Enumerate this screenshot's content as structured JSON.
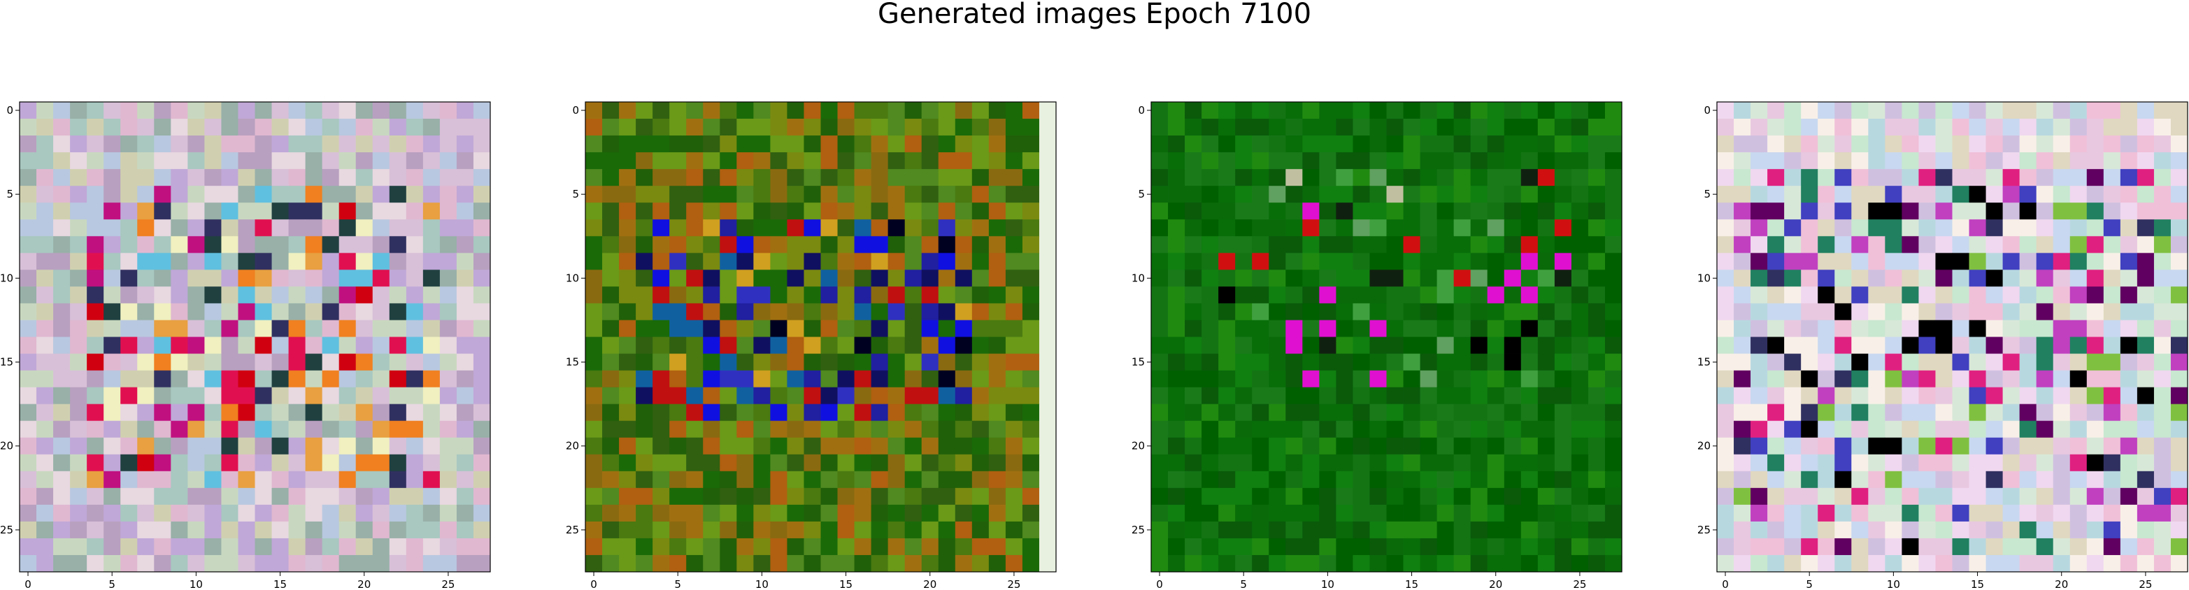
{
  "title": "Generated images Epoch 7100",
  "chart_data": [
    {
      "type": "heatmap",
      "panel": 1,
      "grid_size": 28,
      "xlim": [
        -0.5,
        27.5
      ],
      "ylim": [
        27.5,
        -0.5
      ],
      "xticks": [
        0,
        5,
        10,
        15,
        20,
        25
      ],
      "yticks": [
        0,
        5,
        10,
        15,
        20,
        25
      ],
      "palette": [
        "#d8c0d8",
        "#c8d8c0",
        "#b8c8e0",
        "#e0b8d0",
        "#a8c8c0",
        "#d0d0b0",
        "#c0a8d8",
        "#e8d8e0",
        "#98b0a8",
        "#b8a0c0"
      ],
      "accents": [
        "#e01050",
        "#d00010",
        "#f08020",
        "#e8a040",
        "#c01080",
        "#303060",
        "#204040",
        "#f0f0c0",
        "#60c0e0"
      ],
      "accent_region": {
        "rows": [
          5,
          22
        ],
        "cols": [
          4,
          24
        ]
      },
      "accent_probability": 0.42
    },
    {
      "type": "heatmap",
      "panel": 2,
      "grid_size": 28,
      "xlim": [
        -0.5,
        27.5
      ],
      "ylim": [
        27.5,
        -0.5
      ],
      "xticks": [
        0,
        5,
        10,
        15,
        20,
        25
      ],
      "yticks": [
        0,
        5,
        10,
        15,
        20,
        25
      ],
      "palette": [
        "#4a7a10",
        "#7a8a10",
        "#8a6a10",
        "#306010",
        "#1a6a08",
        "#a07010",
        "#6a9a18",
        "#206008",
        "#b06010",
        "#508a20"
      ],
      "accents": [
        "#1010e0",
        "#2020a0",
        "#101060",
        "#3030c0",
        "#c01010",
        "#d0a020",
        "#1060a0",
        "#000020"
      ],
      "accent_region": {
        "rows": [
          7,
          18
        ],
        "cols": [
          3,
          22
        ]
      },
      "accent_probability": 0.45,
      "last_column": "#e8f0e0"
    },
    {
      "type": "heatmap",
      "panel": 3,
      "grid_size": 28,
      "xlim": [
        -0.5,
        27.5
      ],
      "ylim": [
        27.5,
        -0.5
      ],
      "xticks": [
        0,
        5,
        10,
        15,
        20,
        25
      ],
      "yticks": [
        0,
        5,
        10,
        15,
        20,
        25
      ],
      "palette": [
        "#0a6a0a",
        "#108010",
        "#006000",
        "#1a7a1a",
        "#0a5a0a",
        "#208a10",
        "#086e08",
        "#147414"
      ],
      "accents": [
        "#000000",
        "#102010",
        "#d01010",
        "#e010d0",
        "#c0c0a0",
        "#40a040",
        "#60a060"
      ],
      "accent_region": {
        "rows": [
          4,
          16
        ],
        "cols": [
          4,
          24
        ]
      },
      "accent_probability": 0.18
    },
    {
      "type": "heatmap",
      "panel": 4,
      "grid_size": 28,
      "xlim": [
        -0.5,
        27.5
      ],
      "ylim": [
        27.5,
        -0.5
      ],
      "xticks": [
        0,
        5,
        10,
        15,
        20,
        25
      ],
      "yticks": [
        0,
        5,
        10,
        15,
        20,
        25
      ],
      "palette": [
        "#f0d8f0",
        "#d8e8d8",
        "#e8c8e0",
        "#c8d8f0",
        "#f8f0e8",
        "#d0c0e0",
        "#c8e8d0",
        "#e0d8c0",
        "#f0c0d8",
        "#b8d8e0"
      ],
      "accents": [
        "#000000",
        "#600060",
        "#208060",
        "#e02080",
        "#4040c0",
        "#80c040",
        "#c040c0",
        "#303060"
      ],
      "accent_region": {
        "rows": [
          4,
          26
        ],
        "cols": [
          1,
          27
        ]
      },
      "accent_probability": 0.28
    }
  ]
}
